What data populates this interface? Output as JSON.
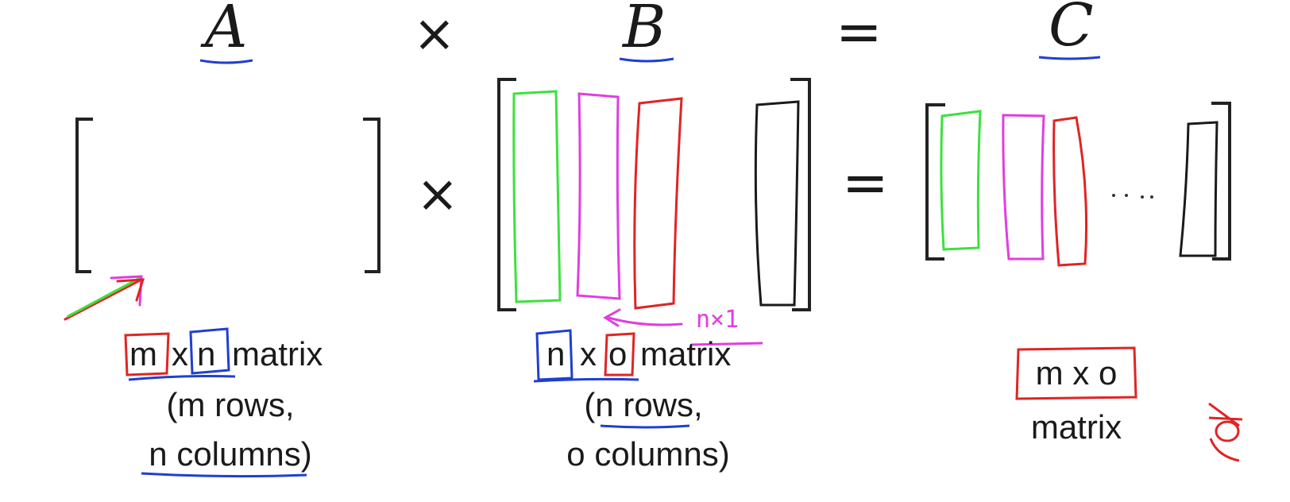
{
  "equation": {
    "a_symbol": "A",
    "b_symbol": "B",
    "c_symbol": "C",
    "times": "×",
    "equals": "="
  },
  "matrix_a": {
    "dim_m": "m",
    "dim_x": "x",
    "dim_n": "n",
    "word": "matrix",
    "rows_line": "(m rows,",
    "cols_line": "n columns)"
  },
  "matrix_b": {
    "dim_n": "n",
    "dim_x": "x",
    "dim_o": "o",
    "word": "matrix",
    "rows_line": "(n rows,",
    "cols_line": "o columns)",
    "annotation": "n×1"
  },
  "matrix_c": {
    "dims": "m x o",
    "word": "matrix"
  },
  "colors": {
    "ink": "#1a1a1a",
    "blue": "#1f3fd1",
    "red": "#e02424",
    "green": "#3ee03e",
    "magenta": "#e03ee0"
  }
}
